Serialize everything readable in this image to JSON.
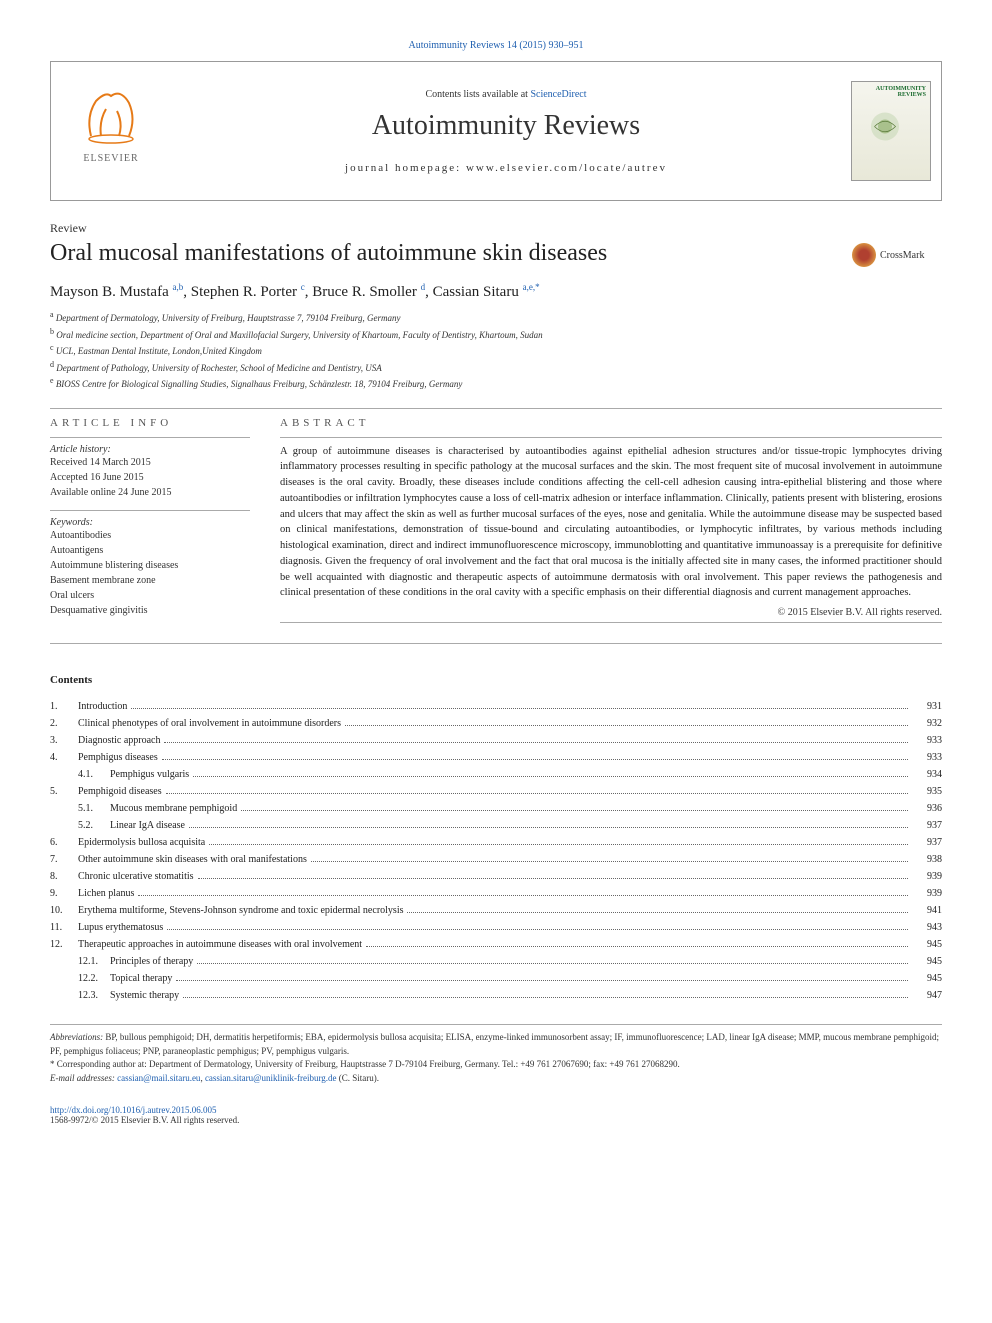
{
  "top_citation": "Autoimmunity Reviews 14 (2015) 930–951",
  "header": {
    "contents_available": "Contents lists available at ",
    "sciencedirect": "ScienceDirect",
    "journal_name": "Autoimmunity Reviews",
    "homepage_label": "journal homepage: www.elsevier.com/locate/autrev",
    "cover_label": "AUTOIMMUNITY\nREVIEWS"
  },
  "article": {
    "type": "Review",
    "title": "Oral mucosal manifestations of autoimmune skin diseases",
    "crossmark": "CrossMark",
    "authors_html": "Mayson B. Mustafa <sup>a,b</sup>, Stephen R. Porter <sup>c</sup>, Bruce R. Smoller <sup>d</sup>, Cassian Sitaru <sup>a,e,*</sup>",
    "affiliations": [
      {
        "sup": "a",
        "text": "Department of Dermatology, University of Freiburg, Hauptstrasse 7, 79104 Freiburg, Germany"
      },
      {
        "sup": "b",
        "text": "Oral medicine section, Department of Oral and Maxillofacial Surgery, University of Khartoum, Faculty of Dentistry, Khartoum, Sudan"
      },
      {
        "sup": "c",
        "text": "UCL, Eastman Dental Institute, London,United Kingdom"
      },
      {
        "sup": "d",
        "text": "Department of Pathology, University of Rochester, School of Medicine and Dentistry, USA"
      },
      {
        "sup": "e",
        "text": "BIOSS Centre for Biological Signalling Studies, Signalhaus Freiburg, Schänzlestr. 18, 79104 Freiburg, Germany"
      }
    ]
  },
  "info": {
    "section_label": "article info",
    "history_label": "Article history:",
    "history": [
      "Received 14 March 2015",
      "Accepted 16 June 2015",
      "Available online 24 June 2015"
    ],
    "keywords_label": "Keywords:",
    "keywords": [
      "Autoantibodies",
      "Autoantigens",
      "Autoimmune blistering diseases",
      "Basement membrane zone",
      "Oral ulcers",
      "Desquamative gingivitis"
    ]
  },
  "abstract": {
    "section_label": "abstract",
    "text": "A group of autoimmune diseases is characterised by autoantibodies against epithelial adhesion structures and/or tissue-tropic lymphocytes driving inflammatory processes resulting in specific pathology at the mucosal surfaces and the skin. The most frequent site of mucosal involvement in autoimmune diseases is the oral cavity. Broadly, these diseases include conditions affecting the cell-cell adhesion causing intra-epithelial blistering and those where autoantibodies or infiltration lymphocytes cause a loss of cell-matrix adhesion or interface inflammation. Clinically, patients present with blistering, erosions and ulcers that may affect the skin as well as further mucosal surfaces of the eyes, nose and genitalia. While the autoimmune disease may be suspected based on clinical manifestations, demonstration of tissue-bound and circulating autoantibodies, or lymphocytic infiltrates, by various methods including histological examination, direct and indirect immunofluorescence microscopy, immunoblotting and quantitative immunoassay is a prerequisite for definitive diagnosis. Given the frequency of oral involvement and the fact that oral mucosa is the initially affected site in many cases, the informed practitioner should be well acquainted with diagnostic and therapeutic aspects of autoimmune dermatosis with oral involvement. This paper reviews the pathogenesis and clinical presentation of these conditions in the oral cavity with a specific emphasis on their differential diagnosis and current management approaches.",
    "copyright": "© 2015 Elsevier B.V. All rights reserved."
  },
  "contents": {
    "heading": "Contents",
    "items": [
      {
        "num": "1.",
        "title": "Introduction",
        "page": "931",
        "level": 1
      },
      {
        "num": "2.",
        "title": "Clinical phenotypes of oral involvement in autoimmune disorders",
        "page": "932",
        "level": 1
      },
      {
        "num": "3.",
        "title": "Diagnostic approach",
        "page": "933",
        "level": 1
      },
      {
        "num": "4.",
        "title": "Pemphigus diseases",
        "page": "933",
        "level": 1
      },
      {
        "num": "4.1.",
        "title": "Pemphigus vulgaris",
        "page": "934",
        "level": 2
      },
      {
        "num": "5.",
        "title": "Pemphigoid diseases",
        "page": "935",
        "level": 1
      },
      {
        "num": "5.1.",
        "title": "Mucous membrane pemphigoid",
        "page": "936",
        "level": 2
      },
      {
        "num": "5.2.",
        "title": "Linear IgA disease",
        "page": "937",
        "level": 2
      },
      {
        "num": "6.",
        "title": "Epidermolysis bullosa acquisita",
        "page": "937",
        "level": 1
      },
      {
        "num": "7.",
        "title": "Other autoimmune skin diseases with oral manifestations",
        "page": "938",
        "level": 1
      },
      {
        "num": "8.",
        "title": "Chronic ulcerative stomatitis",
        "page": "939",
        "level": 1
      },
      {
        "num": "9.",
        "title": "Lichen planus",
        "page": "939",
        "level": 1
      },
      {
        "num": "10.",
        "title": "Erythema multiforme, Stevens-Johnson syndrome and toxic epidermal necrolysis",
        "page": "941",
        "level": 1
      },
      {
        "num": "11.",
        "title": "Lupus erythematosus",
        "page": "943",
        "level": 1
      },
      {
        "num": "12.",
        "title": "Therapeutic approaches in autoimmune diseases with oral involvement",
        "page": "945",
        "level": 1
      },
      {
        "num": "12.1.",
        "title": "Principles of therapy",
        "page": "945",
        "level": 2
      },
      {
        "num": "12.2.",
        "title": "Topical therapy",
        "page": "945",
        "level": 2
      },
      {
        "num": "12.3.",
        "title": "Systemic therapy",
        "page": "947",
        "level": 2
      }
    ]
  },
  "footnotes": {
    "abbrev_label": "Abbreviations:",
    "abbrev_text": " BP, bullous pemphigoid; DH, dermatitis herpetiformis; EBA, epidermolysis bullosa acquisita; ELISA, enzyme-linked immunosorbent assay; IF, immunofluorescence; LAD, linear IgA disease; MMP, mucous membrane pemphigoid; PF, pemphigus foliaceus; PNP, paraneoplastic pemphigus; PV, pemphigus vulgaris.",
    "corresponding_text": "* Corresponding author at: Department of Dermatology, University of Freiburg, Hauptstrasse 7 D-79104 Freiburg, Germany. Tel.: +49 761 27067690; fax: +49 761 27068290.",
    "email_label": "E-mail addresses: ",
    "email1": "cassian@mail.sitaru.eu",
    "email_sep": ", ",
    "email2": "cassian.sitaru@uniklinik-freiburg.de",
    "email_tail": " (C. Sitaru)."
  },
  "footer": {
    "doi": "http://dx.doi.org/10.1016/j.autrev.2015.06.005",
    "issn": "1568-9972/© 2015 Elsevier B.V. All rights reserved."
  },
  "colors": {
    "link": "#2060b0",
    "text": "#222222",
    "rule": "#aaaaaa"
  }
}
